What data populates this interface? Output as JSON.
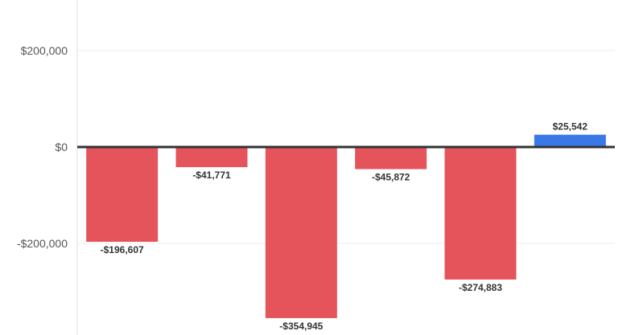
{
  "chart_data": {
    "type": "bar",
    "title": "",
    "xlabel": "",
    "ylabel": "",
    "ylim": [
      -390000,
      300000
    ],
    "grid": true,
    "y_ticks": [
      200000,
      0,
      -200000
    ],
    "y_tick_labels": [
      "$200,000",
      "$0",
      "-$200,000"
    ],
    "values": [
      -196607,
      -41771,
      -354945,
      -45872,
      -274883,
      25542
    ],
    "value_labels": [
      "-$196,607",
      "-$41,771",
      "-$354,945",
      "-$45,872",
      "-$274,883",
      "$25,542"
    ],
    "colors": {
      "negative": "#e5535b",
      "positive": "#3b78e7",
      "zero_line": "#333333",
      "grid": "#eeeeee",
      "axis": "#e0e0e0"
    }
  }
}
